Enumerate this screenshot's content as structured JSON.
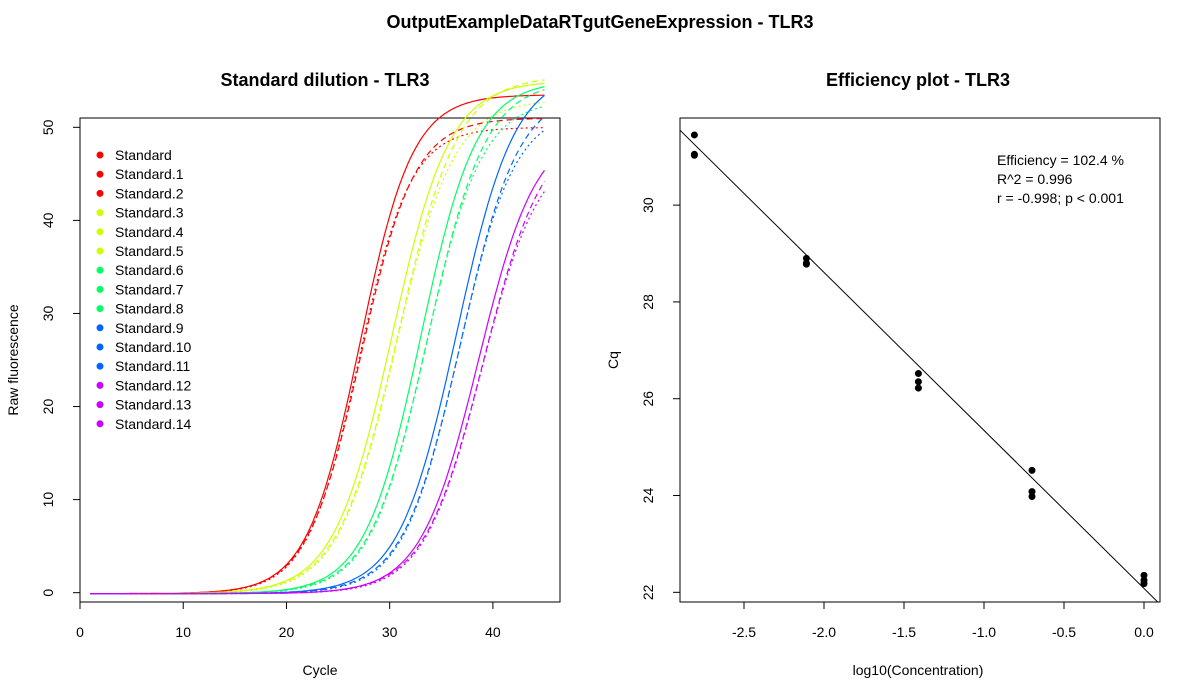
{
  "figure": {
    "title": "OutputExampleDataRTgutGeneExpression - TLR3"
  },
  "chart_data": [
    {
      "type": "line",
      "title": "Standard dilution - TLR3",
      "xlabel": "Cycle",
      "ylabel": "Raw fluorescence",
      "xlim": [
        0,
        46.5
      ],
      "ylim": [
        -1,
        51
      ],
      "xticks": [
        0,
        10,
        20,
        30,
        40
      ],
      "yticks": [
        0,
        10,
        20,
        30,
        40,
        50
      ],
      "grid": false,
      "legend_position": "top-left",
      "series": [
        {
          "name": "Standard",
          "color": "#ff0000",
          "dash": "solid",
          "min": -0.1,
          "max": 53.5,
          "mid": 27.1,
          "slope": 2.55
        },
        {
          "name": "Standard.1",
          "color": "#ff0000",
          "dash": "dashed",
          "min": -0.1,
          "max": 51.0,
          "mid": 27.2,
          "slope": 2.6
        },
        {
          "name": "Standard.2",
          "color": "#ff0000",
          "dash": "dotted",
          "min": -0.1,
          "max": 50.0,
          "mid": 27.0,
          "slope": 2.5
        },
        {
          "name": "Standard.3",
          "color": "#ccff00",
          "dash": "solid",
          "min": -0.1,
          "max": 55.0,
          "mid": 30.2,
          "slope": 2.8
        },
        {
          "name": "Standard.4",
          "color": "#ccff00",
          "dash": "dashed",
          "min": -0.1,
          "max": 55.5,
          "mid": 30.8,
          "slope": 2.9
        },
        {
          "name": "Standard.5",
          "color": "#ccff00",
          "dash": "dotted",
          "min": -0.1,
          "max": 53.0,
          "mid": 30.6,
          "slope": 2.8
        },
        {
          "name": "Standard.6",
          "color": "#00ff66",
          "dash": "solid",
          "min": -0.1,
          "max": 55.0,
          "mid": 33.0,
          "slope": 2.7
        },
        {
          "name": "Standard.7",
          "color": "#00ff66",
          "dash": "dashed",
          "min": -0.1,
          "max": 55.0,
          "mid": 33.7,
          "slope": 2.8
        },
        {
          "name": "Standard.8",
          "color": "#00ff66",
          "dash": "dotted",
          "min": -0.1,
          "max": 53.0,
          "mid": 33.5,
          "slope": 2.7
        },
        {
          "name": "Standard.9",
          "color": "#0066ff",
          "dash": "solid",
          "min": -0.1,
          "max": 56.0,
          "mid": 36.5,
          "slope": 2.8
        },
        {
          "name": "Standard.10",
          "color": "#0066ff",
          "dash": "dashed",
          "min": -0.1,
          "max": 54.0,
          "mid": 36.9,
          "slope": 2.8
        },
        {
          "name": "Standard.11",
          "color": "#0066ff",
          "dash": "dotted",
          "min": -0.1,
          "max": 52.0,
          "mid": 36.7,
          "slope": 2.7
        },
        {
          "name": "Standard.12",
          "color": "#cc00ff",
          "dash": "solid",
          "min": -0.1,
          "max": 50.0,
          "mid": 38.6,
          "slope": 2.8
        },
        {
          "name": "Standard.13",
          "color": "#cc00ff",
          "dash": "dashed",
          "min": -0.1,
          "max": 50.0,
          "mid": 39.1,
          "slope": 2.9
        },
        {
          "name": "Standard.14",
          "color": "#cc00ff",
          "dash": "dotted",
          "min": -0.1,
          "max": 48.0,
          "mid": 38.9,
          "slope": 2.8
        }
      ]
    },
    {
      "type": "scatter",
      "title": "Efficiency plot - TLR3",
      "xlabel": "log10(Concentration)",
      "ylabel": "Cq",
      "xlim": [
        -2.9,
        0.1
      ],
      "ylim": [
        21.8,
        31.8
      ],
      "xticks": [
        -2.5,
        -2.0,
        -1.5,
        -1.0,
        -0.5,
        0.0
      ],
      "xtick_labels": [
        "-2.5",
        "-2.0",
        "-1.5",
        "-1.0",
        "-0.5",
        "0.0"
      ],
      "yticks": [
        22,
        24,
        26,
        28,
        30
      ],
      "grid": false,
      "points": [
        {
          "x": -2.81,
          "y": 31.45
        },
        {
          "x": -2.81,
          "y": 31.05
        },
        {
          "x": -2.81,
          "y": 31.03
        },
        {
          "x": -2.11,
          "y": 28.9
        },
        {
          "x": -2.11,
          "y": 28.78
        },
        {
          "x": -2.11,
          "y": 28.8
        },
        {
          "x": -1.41,
          "y": 26.52
        },
        {
          "x": -1.41,
          "y": 26.35
        },
        {
          "x": -1.41,
          "y": 26.22
        },
        {
          "x": -0.7,
          "y": 24.52
        },
        {
          "x": -0.7,
          "y": 24.08
        },
        {
          "x": -0.7,
          "y": 23.98
        },
        {
          "x": 0.0,
          "y": 22.35
        },
        {
          "x": 0.0,
          "y": 22.18
        },
        {
          "x": 0.0,
          "y": 22.25
        }
      ],
      "fit": {
        "slope": -3.265,
        "intercept": 22.08
      },
      "annotations": [
        "Efficiency = 102.4 %",
        "R^2 = 0.996",
        "r = -0.998; p < 0.001"
      ]
    }
  ]
}
